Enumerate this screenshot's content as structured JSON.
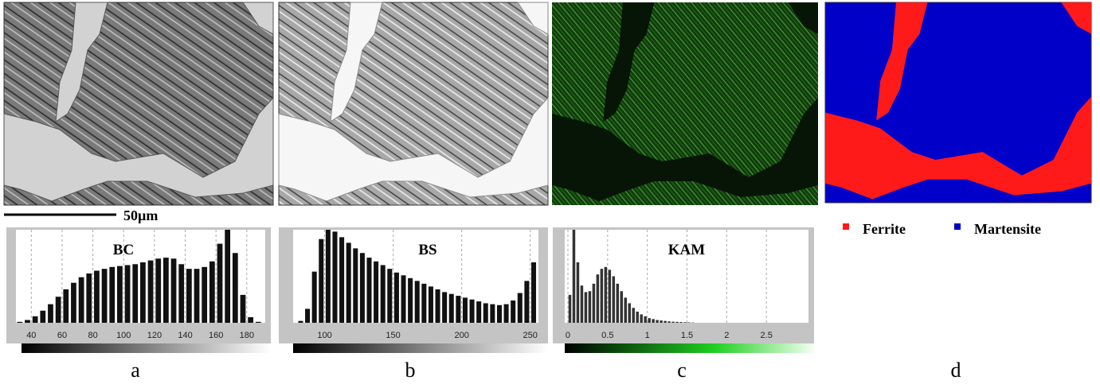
{
  "scale_bar": "50µm",
  "panels": [
    {
      "label": "a",
      "histogram": {
        "title": "BC",
        "xlim": [
          30,
          192
        ],
        "ylim": [
          0,
          100
        ],
        "xticks": [
          40,
          60,
          80,
          100,
          120,
          140,
          160,
          180
        ],
        "bins": [
          30,
          35,
          40,
          45,
          50,
          55,
          60,
          65,
          70,
          75,
          80,
          85,
          90,
          95,
          100,
          105,
          110,
          115,
          120,
          125,
          130,
          135,
          140,
          145,
          150,
          155,
          160,
          165,
          170,
          175,
          180,
          185,
          190
        ],
        "counts": [
          1,
          3,
          7,
          13,
          20,
          28,
          36,
          43,
          49,
          53,
          56,
          58,
          60,
          61,
          62,
          63,
          65,
          67,
          69,
          70,
          69,
          63,
          58,
          58,
          60,
          66,
          85,
          100,
          75,
          30,
          6,
          1
        ]
      }
    },
    {
      "label": "b",
      "histogram": {
        "title": "BS",
        "xlim": [
          77,
          256
        ],
        "ylim": [
          0,
          100
        ],
        "xticks": [
          100,
          150,
          200,
          250
        ],
        "bins": [
          80,
          85,
          90,
          95,
          100,
          105,
          110,
          115,
          120,
          125,
          130,
          135,
          140,
          145,
          150,
          155,
          160,
          165,
          170,
          175,
          180,
          185,
          190,
          195,
          200,
          205,
          210,
          215,
          220,
          225,
          230,
          235,
          240,
          245,
          250,
          255
        ],
        "counts": [
          2,
          15,
          55,
          90,
          100,
          98,
          92,
          86,
          80,
          75,
          70,
          66,
          62,
          58,
          54,
          51,
          48,
          45,
          42,
          39,
          36,
          33,
          31,
          29,
          27,
          25,
          23,
          21,
          20,
          19,
          20,
          24,
          32,
          45,
          65
        ]
      }
    },
    {
      "label": "c",
      "histogram": {
        "title": "KAM",
        "xlim": [
          -0.04,
          3.03
        ],
        "ylim": [
          0,
          100
        ],
        "xticks": [
          0,
          0.5,
          1,
          1.5,
          2,
          2.5
        ],
        "bins": [
          0,
          0.05,
          0.1,
          0.15,
          0.2,
          0.25,
          0.3,
          0.35,
          0.4,
          0.45,
          0.5,
          0.55,
          0.6,
          0.65,
          0.7,
          0.75,
          0.8,
          0.85,
          0.9,
          0.95,
          1,
          1.05,
          1.1,
          1.15,
          1.2,
          1.25,
          1.3,
          1.35,
          1.4,
          1.45,
          1.5,
          1.55,
          1.6
        ],
        "counts": [
          30,
          100,
          65,
          40,
          33,
          34,
          42,
          52,
          58,
          60,
          57,
          50,
          42,
          34,
          27,
          21,
          16,
          12,
          9,
          7,
          5,
          4,
          3,
          2.5,
          2,
          1.5,
          1.2,
          1,
          0.8,
          0.6,
          0.4,
          0.3
        ]
      }
    },
    {
      "label": "d",
      "legend": [
        {
          "name": "Ferrite",
          "color": "#ff1a1a"
        },
        {
          "name": "Martensite",
          "color": "#0000c8"
        }
      ]
    }
  ]
}
